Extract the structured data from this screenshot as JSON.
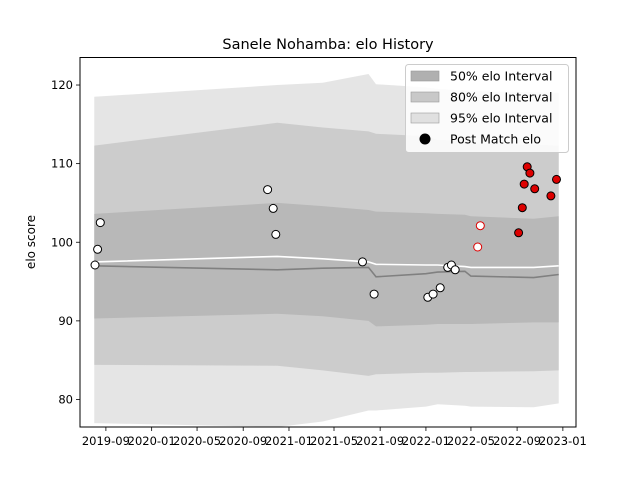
{
  "chart_data": {
    "type": "line",
    "title": "Sanele Nohamba: elo History",
    "xlabel": "",
    "ylabel": "elo score",
    "x_range": [
      "2019-06-24",
      "2023-02-05"
    ],
    "ylim": [
      76.5,
      123.5
    ],
    "x_ticks": [
      "2019-09",
      "2020-01",
      "2020-05",
      "2020-09",
      "2021-01",
      "2021-05",
      "2021-09",
      "2022-01",
      "2022-05",
      "2022-09",
      "2023-01"
    ],
    "y_ticks": [
      80,
      90,
      100,
      110,
      120
    ],
    "grid": false,
    "legend_position": "top-right",
    "legend": [
      {
        "label": "50% elo Interval",
        "kind": "band",
        "color": "#b0b0b0"
      },
      {
        "label": "80% elo Interval",
        "kind": "band",
        "color": "#c8c8c8"
      },
      {
        "label": "95% elo Interval",
        "kind": "band",
        "color": "#e0e0e0"
      },
      {
        "label": "Post Match elo",
        "kind": "marker",
        "color": "#000000"
      }
    ],
    "dates": [
      "2019-08-01",
      "2020-12-01",
      "2021-04-01",
      "2021-08-01",
      "2021-08-21",
      "2022-01-01",
      "2022-02-01",
      "2022-04-15",
      "2022-05-01",
      "2022-10-15",
      "2022-12-21"
    ],
    "series": [
      {
        "name": "95% elo Interval",
        "upper": [
          118.5,
          120.0,
          120.3,
          121.4,
          120.1,
          119.7,
          119.5,
          119.3,
          119.2,
          119.1,
          119.0
        ],
        "lower": [
          77.0,
          76.5,
          77.2,
          78.6,
          78.6,
          79.1,
          79.4,
          79.2,
          79.1,
          79.0,
          79.5
        ]
      },
      {
        "name": "80% elo Interval",
        "upper": [
          112.3,
          115.2,
          114.6,
          114.1,
          113.8,
          113.5,
          113.0,
          112.9,
          112.6,
          112.4,
          112.3
        ],
        "lower": [
          84.4,
          84.3,
          83.7,
          83.0,
          83.2,
          83.4,
          83.4,
          83.5,
          83.5,
          83.6,
          83.7
        ]
      },
      {
        "name": "50% elo Interval",
        "upper": [
          103.6,
          105.0,
          104.6,
          104.1,
          103.9,
          103.7,
          103.6,
          103.5,
          103.3,
          103.0,
          103.3
        ],
        "lower": [
          90.3,
          90.9,
          90.6,
          90.0,
          89.3,
          89.5,
          89.6,
          89.6,
          89.6,
          89.8,
          89.8
        ]
      },
      {
        "name": "median",
        "color": "#ffffff",
        "values": [
          97.5,
          98.2,
          97.9,
          97.5,
          97.2,
          97.1,
          97.1,
          96.9,
          96.8,
          96.8,
          97.0
        ]
      },
      {
        "name": "mean",
        "color": "#808080",
        "values": [
          97.0,
          96.5,
          96.7,
          96.8,
          95.6,
          96.0,
          96.2,
          96.3,
          95.7,
          95.5,
          95.9
        ]
      }
    ],
    "points": [
      {
        "x": "2019-08-03",
        "y": 97.1,
        "color": "#ffffff",
        "edge": "#000000"
      },
      {
        "x": "2019-08-10",
        "y": 99.1,
        "color": "#ffffff",
        "edge": "#000000"
      },
      {
        "x": "2019-08-17",
        "y": 102.5,
        "color": "#ffffff",
        "edge": "#000000"
      },
      {
        "x": "2020-11-05",
        "y": 106.7,
        "color": "#ffffff",
        "edge": "#000000"
      },
      {
        "x": "2020-11-20",
        "y": 104.3,
        "color": "#ffffff",
        "edge": "#000000"
      },
      {
        "x": "2020-11-27",
        "y": 101.0,
        "color": "#ffffff",
        "edge": "#000000"
      },
      {
        "x": "2021-07-16",
        "y": 97.5,
        "color": "#ffffff",
        "edge": "#000000"
      },
      {
        "x": "2021-08-16",
        "y": 93.4,
        "color": "#ffffff",
        "edge": "#000000"
      },
      {
        "x": "2022-01-06",
        "y": 93.0,
        "color": "#ffffff",
        "edge": "#000000"
      },
      {
        "x": "2022-01-20",
        "y": 93.4,
        "color": "#ffffff",
        "edge": "#000000"
      },
      {
        "x": "2022-02-08",
        "y": 94.2,
        "color": "#ffffff",
        "edge": "#000000"
      },
      {
        "x": "2022-02-28",
        "y": 96.8,
        "color": "#ffffff",
        "edge": "#000000"
      },
      {
        "x": "2022-03-10",
        "y": 97.1,
        "color": "#ffffff",
        "edge": "#000000"
      },
      {
        "x": "2022-03-20",
        "y": 96.5,
        "color": "#ffffff",
        "edge": "#000000"
      },
      {
        "x": "2022-05-19",
        "y": 99.4,
        "color": "#ffffff",
        "edge": "#dd0000"
      },
      {
        "x": "2022-05-26",
        "y": 102.1,
        "color": "#ffffff",
        "edge": "#dd0000"
      },
      {
        "x": "2022-09-05",
        "y": 101.2,
        "color": "#dd0000",
        "edge": "#000000"
      },
      {
        "x": "2022-09-15",
        "y": 104.4,
        "color": "#dd0000",
        "edge": "#000000"
      },
      {
        "x": "2022-09-20",
        "y": 107.4,
        "color": "#dd0000",
        "edge": "#000000"
      },
      {
        "x": "2022-09-28",
        "y": 109.6,
        "color": "#dd0000",
        "edge": "#000000"
      },
      {
        "x": "2022-10-05",
        "y": 108.8,
        "color": "#dd0000",
        "edge": "#000000"
      },
      {
        "x": "2022-10-18",
        "y": 106.8,
        "color": "#dd0000",
        "edge": "#000000"
      },
      {
        "x": "2022-11-30",
        "y": 105.9,
        "color": "#dd0000",
        "edge": "#000000"
      },
      {
        "x": "2022-12-15",
        "y": 108.0,
        "color": "#dd0000",
        "edge": "#000000"
      }
    ]
  }
}
